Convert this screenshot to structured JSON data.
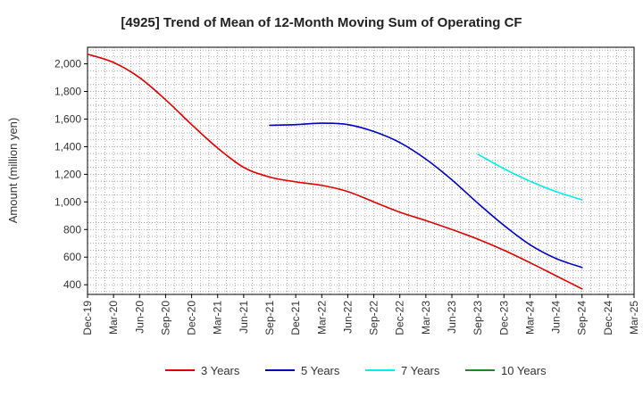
{
  "chart_data": {
    "type": "line",
    "title": "[4925]  Trend of Mean of 12-Month Moving Sum of Operating CF",
    "xlabel": "",
    "ylabel": "Amount (million yen)",
    "ylim": [
      330,
      2120
    ],
    "yticks": [
      400,
      600,
      800,
      1000,
      1200,
      1400,
      1600,
      1800,
      2000
    ],
    "ytick_labels": [
      "400",
      "600",
      "800",
      "1,000",
      "1,200",
      "1,400",
      "1,600",
      "1,800",
      "2,000"
    ],
    "xlim": [
      0,
      63
    ],
    "xticks": [
      0,
      3,
      6,
      9,
      12,
      15,
      18,
      21,
      24,
      27,
      30,
      33,
      36,
      39,
      42,
      45,
      48,
      51,
      54,
      57,
      60,
      63
    ],
    "xtick_labels": [
      "Dec-19",
      "Mar-20",
      "Jun-20",
      "Sep-20",
      "Dec-20",
      "Mar-21",
      "Jun-21",
      "Sep-21",
      "Dec-21",
      "Mar-22",
      "Jun-22",
      "Sep-22",
      "Dec-22",
      "Mar-23",
      "Jun-23",
      "Sep-23",
      "Dec-23",
      "Mar-24",
      "Jun-24",
      "Sep-24",
      "Dec-24",
      "Mar-25"
    ],
    "grid": true,
    "legend_position": "bottom",
    "series": [
      {
        "name": "3 Years",
        "color": "#dd0000",
        "x": [
          0,
          3,
          6,
          9,
          12,
          15,
          18,
          21,
          24,
          27,
          30,
          33,
          36,
          39,
          42,
          45,
          48,
          51,
          54,
          57
        ],
        "values": [
          2070,
          2010,
          1900,
          1740,
          1560,
          1390,
          1250,
          1180,
          1145,
          1120,
          1075,
          1000,
          925,
          865,
          800,
          730,
          650,
          560,
          465,
          370
        ]
      },
      {
        "name": "5 Years",
        "color": "#0000bb",
        "x": [
          21,
          24,
          27,
          30,
          33,
          36,
          39,
          42,
          45,
          48,
          51,
          54,
          57
        ],
        "values": [
          1555,
          1560,
          1570,
          1560,
          1510,
          1430,
          1310,
          1160,
          990,
          830,
          690,
          590,
          525
        ]
      },
      {
        "name": "7 Years",
        "color": "#00eeee",
        "x": [
          45,
          48,
          51,
          54,
          57
        ],
        "values": [
          1345,
          1240,
          1150,
          1075,
          1015
        ]
      },
      {
        "name": "10 Years",
        "color": "#228822",
        "x": [],
        "values": []
      }
    ]
  }
}
